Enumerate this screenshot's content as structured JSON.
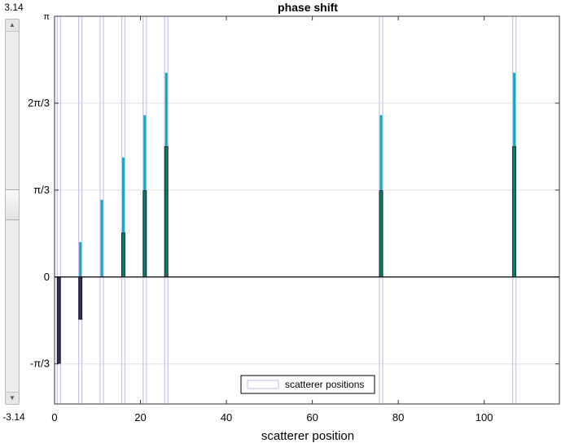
{
  "slider": {
    "max_label": "3.14",
    "min_label": "-3.14",
    "value_fraction": 0.52
  },
  "chart_data": {
    "type": "bar",
    "title": "phase shift",
    "xlabel": "scatterer position",
    "ylabel": "",
    "xlim": [
      0,
      117.5
    ],
    "ylim": [
      -1.53,
      3.1416
    ],
    "xticks": [
      0,
      20,
      40,
      60,
      80,
      100
    ],
    "xtick_labels": [
      "0",
      "20",
      "40",
      "60",
      "80",
      "100"
    ],
    "yticks": [
      -1.0472,
      0,
      1.0472,
      2.0944,
      3.1416
    ],
    "ytick_labels": [
      "-π/3",
      "0",
      "π/3",
      "2π/3",
      "π"
    ],
    "grid": "horizontal",
    "legend": {
      "position": "bottom-center",
      "entries": [
        "scatterer positions"
      ]
    },
    "scatterer_positions": [
      1,
      6,
      11,
      16,
      21,
      26,
      76,
      107
    ],
    "series": [
      {
        "values": [
          -0.1,
          0.42,
          0.93,
          1.44,
          1.95,
          2.46,
          1.95,
          2.46
        ],
        "color": "#1aa5c4"
      },
      {
        "values": [
          -1.04,
          -0.51,
          0,
          0.53,
          1.04,
          1.57,
          1.04,
          1.57
        ],
        "color": "#2b2d6e"
      }
    ],
    "colors": {
      "marker_lines": "#c8c8ee",
      "upper_bar": "#1aa5c4",
      "lower_bar_positive": "#0b7b6d",
      "lower_bar_negative": "#2b2d6e",
      "grid": "#dddddd"
    }
  }
}
